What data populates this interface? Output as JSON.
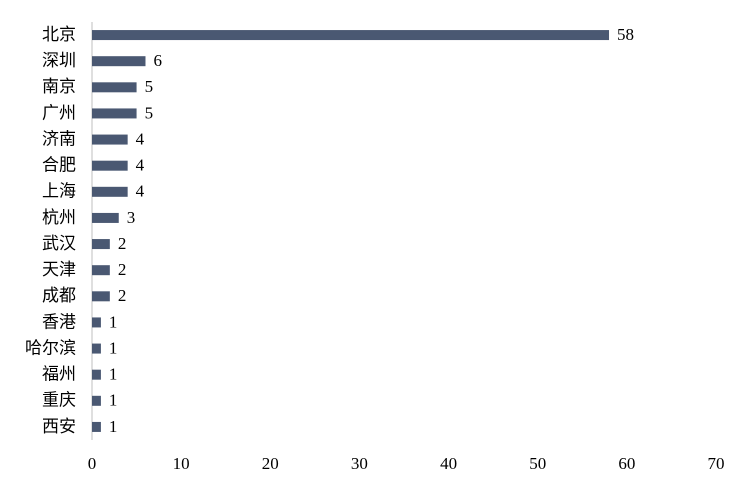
{
  "chart_data": {
    "type": "hbar",
    "categories": [
      "北京",
      "深圳",
      "南京",
      "广州",
      "济南",
      "合肥",
      "上海",
      "杭州",
      "武汉",
      "天津",
      "成都",
      "香港",
      "哈尔滨",
      "福州",
      "重庆",
      "西安"
    ],
    "values": [
      58,
      6,
      5,
      5,
      4,
      4,
      4,
      3,
      2,
      2,
      2,
      1,
      1,
      1,
      1,
      1
    ],
    "color": "#4a5872",
    "xlim": [
      0,
      70
    ],
    "xticks": [
      0,
      10,
      20,
      30,
      40,
      50,
      60,
      70
    ],
    "grid": false
  }
}
